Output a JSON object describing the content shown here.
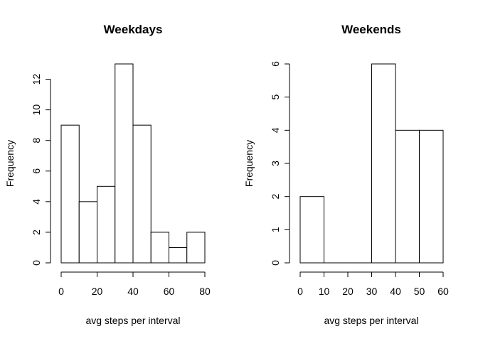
{
  "chart_data": [
    {
      "type": "histogram",
      "title": "Weekdays",
      "xlabel": "avg steps per interval",
      "ylabel": "Frequency",
      "bins": [
        [
          0,
          10
        ],
        [
          10,
          20
        ],
        [
          20,
          30
        ],
        [
          30,
          40
        ],
        [
          40,
          50
        ],
        [
          50,
          60
        ],
        [
          60,
          70
        ],
        [
          70,
          80
        ]
      ],
      "values": [
        9,
        4,
        5,
        13,
        9,
        2,
        1,
        2
      ],
      "xlim": [
        0,
        80
      ],
      "ylim": [
        0,
        13
      ],
      "xticks": [
        0,
        20,
        40,
        60,
        80
      ],
      "yticks": [
        0,
        2,
        4,
        6,
        8,
        10,
        12
      ],
      "grid": false,
      "legend": "none"
    },
    {
      "type": "histogram",
      "title": "Weekends",
      "xlabel": "avg steps per interval",
      "ylabel": "Frequency",
      "bins": [
        [
          0,
          10
        ],
        [
          10,
          20
        ],
        [
          20,
          30
        ],
        [
          30,
          40
        ],
        [
          40,
          50
        ],
        [
          50,
          60
        ]
      ],
      "values": [
        2,
        0,
        0,
        6,
        4,
        4
      ],
      "xlim": [
        0,
        60
      ],
      "ylim": [
        0,
        6
      ],
      "xticks": [
        0,
        10,
        20,
        30,
        40,
        50,
        60
      ],
      "yticks": [
        0,
        1,
        2,
        3,
        4,
        5,
        6
      ],
      "grid": false,
      "legend": "none"
    }
  ]
}
